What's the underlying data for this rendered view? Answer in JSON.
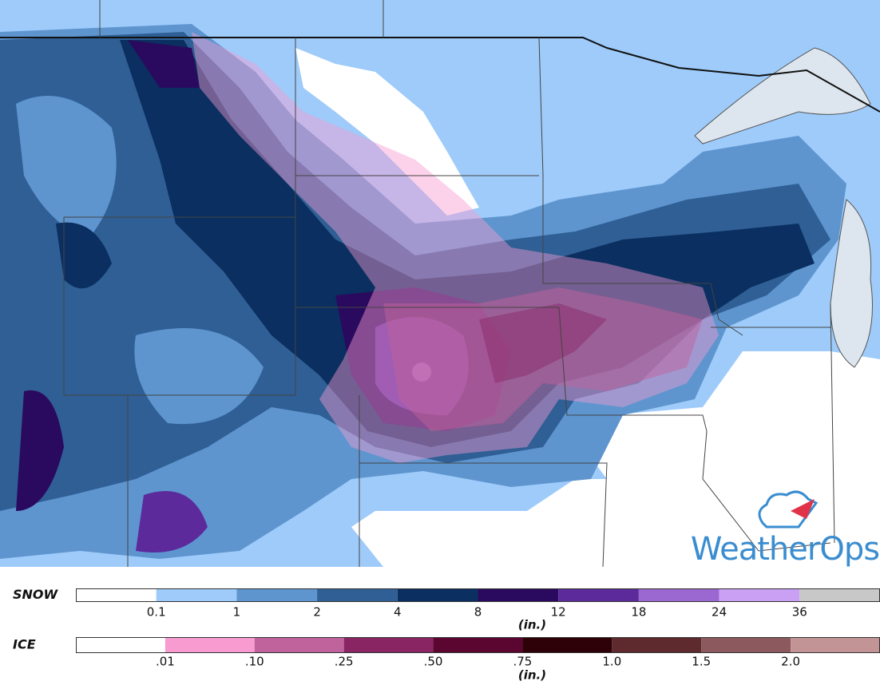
{
  "logo": "WeatherOps",
  "legend": {
    "snow": {
      "title": "SNOW",
      "unit": "(in.)",
      "ticks": [
        "0.1",
        "1",
        "2",
        "4",
        "8",
        "12",
        "18",
        "24",
        "36"
      ],
      "colors": [
        "#ffffff",
        "#9ecbfa",
        "#5e95cf",
        "#2f5f95",
        "#0a2f60",
        "#2a0a5e",
        "#5c2a9b",
        "#9a68d0",
        "#caa0f5",
        "#c8c8c8"
      ]
    },
    "ice": {
      "title": "ICE",
      "unit": "(in.)",
      "ticks": [
        ".01",
        ".10",
        ".25",
        ".50",
        ".75",
        "1.0",
        "1.5",
        "2.0"
      ],
      "colors": [
        "#ffffff",
        "#f79bd0",
        "#c0629c",
        "#8a2563",
        "#5b0630",
        "#2e0008",
        "#5e2a2e",
        "#8c5a5e",
        "#c29496"
      ]
    }
  }
}
